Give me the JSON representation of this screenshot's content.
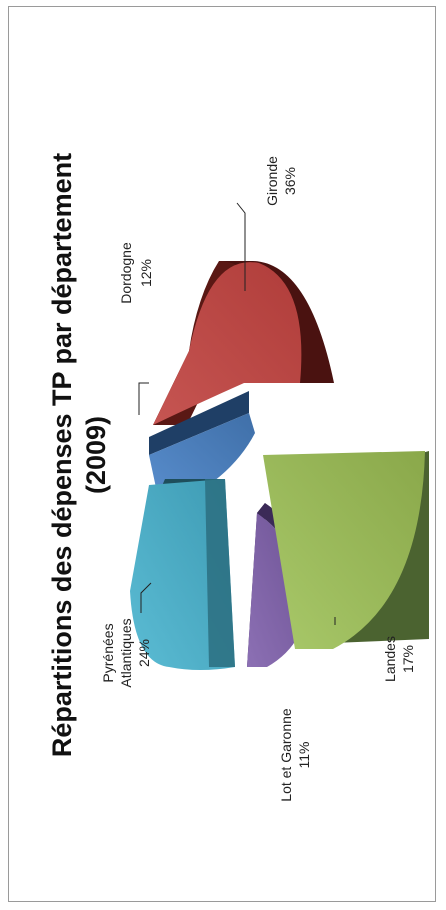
{
  "chart_data": {
    "type": "pie",
    "title_line1": "Répartitions des dépenses TP par département",
    "title_line2": "(2009)",
    "slices": [
      {
        "label": "Gironde",
        "value": 36,
        "value_text": "36%",
        "color": "#be4b48",
        "side_color": "#5a1814"
      },
      {
        "label": "Dordogne",
        "value": 12,
        "value_text": "12%",
        "color": "#4a7ebb",
        "side_color": "#1f3f66"
      },
      {
        "label": "Pyrénées Atlantiques",
        "label_lines": [
          "Pyrénées",
          "Atlantiques"
        ],
        "value": 24,
        "value_text": "24%",
        "color": "#4bacc6",
        "side_color": "#1e4e5c"
      },
      {
        "label": "Lot et Garonne",
        "value": 11,
        "value_text": "11%",
        "color": "#7f63a6",
        "side_color": "#3b2a57"
      },
      {
        "label": "Landes",
        "value": 17,
        "value_text": "17%",
        "color": "#9bbb59",
        "side_color": "#4b6330"
      }
    ]
  }
}
